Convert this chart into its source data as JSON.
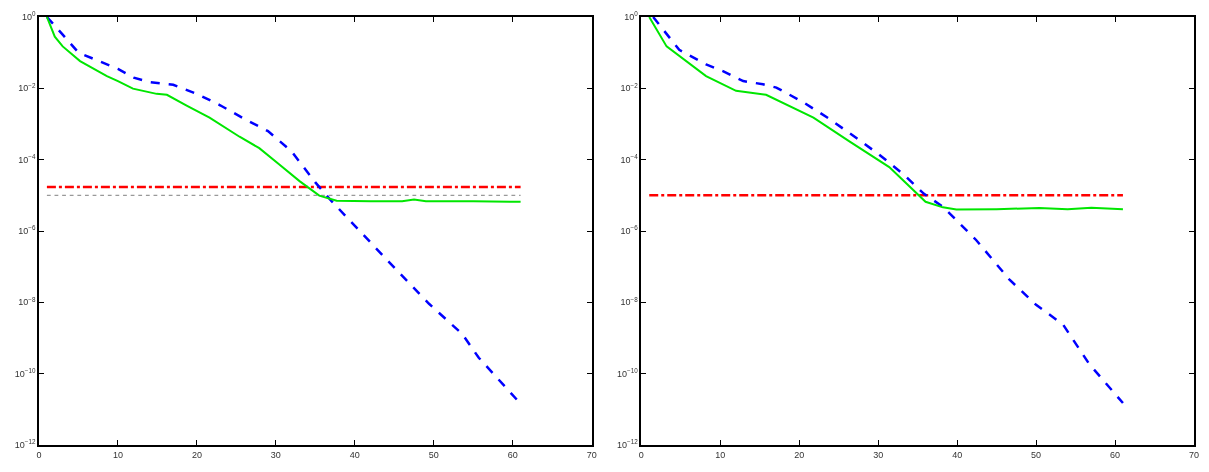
{
  "chart_data": [
    {
      "type": "line",
      "log": "y",
      "xlim": [
        0,
        70
      ],
      "xticks": [
        0,
        10,
        20,
        30,
        40,
        50,
        60,
        70
      ],
      "ylim": [
        1e-12,
        1
      ],
      "yticks": [
        {
          "value": 1e-12,
          "label": "10$^{−12}$"
        },
        {
          "value": 1e-10,
          "label": "10$^{−10}$"
        },
        {
          "value": 1e-08,
          "label": "10$^{−8}$"
        },
        {
          "value": 1e-06,
          "label": "10$^{−6}$"
        },
        {
          "value": 0.0001,
          "label": "10$^{−4}$"
        },
        {
          "value": 0.01,
          "label": "10$^{−2}$"
        },
        {
          "value": 1,
          "label": "10$^{0}$"
        }
      ],
      "series": [
        {
          "color": "#ff0000",
          "line_style": "dashdot",
          "x": [
            1,
            61
          ],
          "values": [
            1.7e-05,
            1.7e-05
          ]
        },
        {
          "color": "#999999",
          "line_style": "dotted",
          "x": [
            1,
            61
          ],
          "values": [
            1e-05,
            1e-05
          ]
        },
        {
          "color": "#0000ff",
          "line_style": "dashed",
          "x": [
            1,
            3,
            5,
            10,
            12,
            14,
            17,
            20,
            23,
            26,
            29,
            32,
            35,
            37,
            44.4,
            49.4,
            53.6,
            55.7,
            60.8
          ],
          "values": [
            1,
            0.32,
            0.1,
            0.035,
            0.02,
            0.015,
            0.0126,
            0.007,
            0.0033,
            0.0014,
            0.00063,
            0.00017,
            2.3e-05,
            7.1e-06,
            1.3e-07,
            9.1e-09,
            1.3e-09,
            2.8e-10,
            1.6e-11
          ]
        },
        {
          "color": "#00e600",
          "line_style": "solid",
          "x": [
            1,
            2,
            3,
            5.2,
            8.6,
            10,
            11.9,
            14.9,
            16.2,
            18.7,
            21.6,
            25.4,
            27.9,
            30.4,
            33,
            35.5,
            37.7,
            42,
            46,
            47.5,
            49,
            55,
            61
          ],
          "values": [
            1,
            0.28,
            0.15,
            0.058,
            0.022,
            0.016,
            0.0098,
            0.007,
            0.0066,
            0.0033,
            0.0015,
            0.00044,
            0.00021,
            7.4e-05,
            2.5e-05,
            9.8e-06,
            7.1e-06,
            6.8e-06,
            6.8e-06,
            7.6e-06,
            6.8e-06,
            6.8e-06,
            6.6e-06
          ]
        }
      ]
    },
    {
      "type": "line",
      "log": "y",
      "xlim": [
        0,
        70
      ],
      "xticks": [
        0,
        10,
        20,
        30,
        40,
        50,
        60,
        70
      ],
      "ylim": [
        1e-12,
        1
      ],
      "yticks": [
        {
          "value": 1e-12,
          "label": "10$^{−12}$"
        },
        {
          "value": 1e-10,
          "label": "10$^{−10}$"
        },
        {
          "value": 1e-08,
          "label": "10$^{−8}$"
        },
        {
          "value": 1e-06,
          "label": "10$^{−6}$"
        },
        {
          "value": 0.0001,
          "label": "10$^{−4}$"
        },
        {
          "value": 0.01,
          "label": "10$^{−2}$"
        },
        {
          "value": 1,
          "label": "10$^{0}$"
        }
      ],
      "series": [
        {
          "color": "#ff0000",
          "line_style": "dashdot",
          "x": [
            1,
            61
          ],
          "values": [
            1e-05,
            1e-05
          ]
        },
        {
          "color": "#0000ff",
          "line_style": "dashed",
          "x": [
            1.5,
            4.8,
            8.2,
            10.4,
            12.9,
            15.4,
            17.1,
            20.5,
            23.8,
            27.2,
            30.1,
            33.2,
            35.8,
            38.2,
            42.4,
            46.6,
            50,
            53.4,
            56.7,
            61
          ],
          "values": [
            1,
            0.12,
            0.047,
            0.03,
            0.016,
            0.013,
            0.0105,
            0.0041,
            0.0014,
            0.00041,
            0.00014,
            3.9e-05,
            1.1e-05,
            4.8e-06,
            5.6e-07,
            4.4e-08,
            8.5e-09,
            2.4e-09,
            1.9e-10,
            1.5e-11
          ]
        },
        {
          "color": "#00e600",
          "line_style": "solid",
          "x": [
            1,
            3.2,
            8.2,
            12,
            15.8,
            21.8,
            26.4,
            31.4,
            36,
            38.2,
            39.9,
            45,
            50.4,
            54,
            57,
            61
          ],
          "values": [
            1,
            0.15,
            0.022,
            0.0085,
            0.0066,
            0.0015,
            0.00032,
            6.2e-05,
            6.6e-06,
            4.6e-06,
            4e-06,
            4.1e-06,
            4.4e-06,
            4.1e-06,
            4.5e-06,
            4.1e-06
          ]
        }
      ]
    }
  ]
}
